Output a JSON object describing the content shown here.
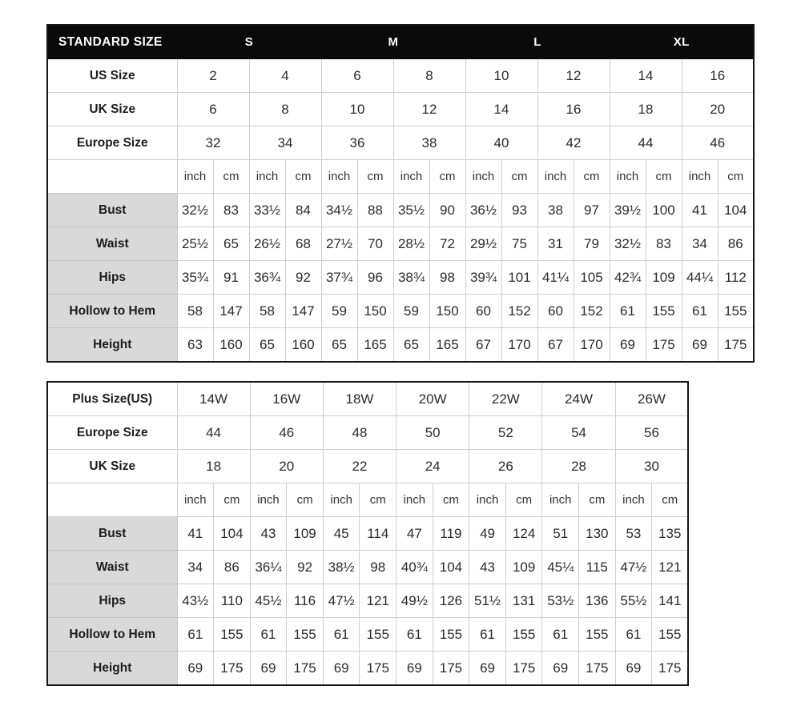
{
  "units": [
    "inch",
    "cm"
  ],
  "colors": {
    "header_bg": "#0a0a0a",
    "header_text": "#ffffff",
    "label_cell_bg": "#d9d9d9",
    "inner_border": "#cfcfcf",
    "outer_border": "#161616",
    "text": "#262626"
  },
  "standard_table": {
    "title": "STANDARD SIZE",
    "groups": [
      "S",
      "M",
      "L",
      "XL"
    ],
    "size_rows": [
      {
        "label": "US Size",
        "values": [
          "2",
          "4",
          "6",
          "8",
          "10",
          "12",
          "14",
          "16"
        ]
      },
      {
        "label": "UK Size",
        "values": [
          "6",
          "8",
          "10",
          "12",
          "14",
          "16",
          "18",
          "20"
        ]
      },
      {
        "label": "Europe Size",
        "values": [
          "32",
          "34",
          "36",
          "38",
          "40",
          "42",
          "44",
          "46"
        ]
      }
    ],
    "measurement_rows": [
      {
        "label": "Bust",
        "values": [
          [
            "32½",
            "83"
          ],
          [
            "33½",
            "84"
          ],
          [
            "34½",
            "88"
          ],
          [
            "35½",
            "90"
          ],
          [
            "36½",
            "93"
          ],
          [
            "38",
            "97"
          ],
          [
            "39½",
            "100"
          ],
          [
            "41",
            "104"
          ]
        ]
      },
      {
        "label": "Waist",
        "values": [
          [
            "25½",
            "65"
          ],
          [
            "26½",
            "68"
          ],
          [
            "27½",
            "70"
          ],
          [
            "28½",
            "72"
          ],
          [
            "29½",
            "75"
          ],
          [
            "31",
            "79"
          ],
          [
            "32½",
            "83"
          ],
          [
            "34",
            "86"
          ]
        ]
      },
      {
        "label": "Hips",
        "values": [
          [
            "35¾",
            "91"
          ],
          [
            "36¾",
            "92"
          ],
          [
            "37¾",
            "96"
          ],
          [
            "38¾",
            "98"
          ],
          [
            "39¾",
            "101"
          ],
          [
            "41¼",
            "105"
          ],
          [
            "42¾",
            "109"
          ],
          [
            "44¼",
            "112"
          ]
        ]
      },
      {
        "label": "Hollow to Hem",
        "values": [
          [
            "58",
            "147"
          ],
          [
            "58",
            "147"
          ],
          [
            "59",
            "150"
          ],
          [
            "59",
            "150"
          ],
          [
            "60",
            "152"
          ],
          [
            "60",
            "152"
          ],
          [
            "61",
            "155"
          ],
          [
            "61",
            "155"
          ]
        ]
      },
      {
        "label": "Height",
        "values": [
          [
            "63",
            "160"
          ],
          [
            "65",
            "160"
          ],
          [
            "65",
            "165"
          ],
          [
            "65",
            "165"
          ],
          [
            "67",
            "170"
          ],
          [
            "67",
            "170"
          ],
          [
            "69",
            "175"
          ],
          [
            "69",
            "175"
          ]
        ]
      }
    ]
  },
  "plus_table": {
    "size_rows": [
      {
        "label": "Plus Size(US)",
        "values": [
          "14W",
          "16W",
          "18W",
          "20W",
          "22W",
          "24W",
          "26W"
        ]
      },
      {
        "label": "Europe Size",
        "values": [
          "44",
          "46",
          "48",
          "50",
          "52",
          "54",
          "56"
        ]
      },
      {
        "label": "UK Size",
        "values": [
          "18",
          "20",
          "22",
          "24",
          "26",
          "28",
          "30"
        ]
      }
    ],
    "measurement_rows": [
      {
        "label": "Bust",
        "values": [
          [
            "41",
            "104"
          ],
          [
            "43",
            "109"
          ],
          [
            "45",
            "114"
          ],
          [
            "47",
            "119"
          ],
          [
            "49",
            "124"
          ],
          [
            "51",
            "130"
          ],
          [
            "53",
            "135"
          ]
        ]
      },
      {
        "label": "Waist",
        "values": [
          [
            "34",
            "86"
          ],
          [
            "36¼",
            "92"
          ],
          [
            "38½",
            "98"
          ],
          [
            "40¾",
            "104"
          ],
          [
            "43",
            "109"
          ],
          [
            "45¼",
            "115"
          ],
          [
            "47½",
            "121"
          ]
        ]
      },
      {
        "label": "Hips",
        "values": [
          [
            "43½",
            "110"
          ],
          [
            "45½",
            "116"
          ],
          [
            "47½",
            "121"
          ],
          [
            "49½",
            "126"
          ],
          [
            "51½",
            "131"
          ],
          [
            "53½",
            "136"
          ],
          [
            "55½",
            "141"
          ]
        ]
      },
      {
        "label": "Hollow to Hem",
        "values": [
          [
            "61",
            "155"
          ],
          [
            "61",
            "155"
          ],
          [
            "61",
            "155"
          ],
          [
            "61",
            "155"
          ],
          [
            "61",
            "155"
          ],
          [
            "61",
            "155"
          ],
          [
            "61",
            "155"
          ]
        ]
      },
      {
        "label": "Height",
        "values": [
          [
            "69",
            "175"
          ],
          [
            "69",
            "175"
          ],
          [
            "69",
            "175"
          ],
          [
            "69",
            "175"
          ],
          [
            "69",
            "175"
          ],
          [
            "69",
            "175"
          ],
          [
            "69",
            "175"
          ]
        ]
      }
    ]
  }
}
